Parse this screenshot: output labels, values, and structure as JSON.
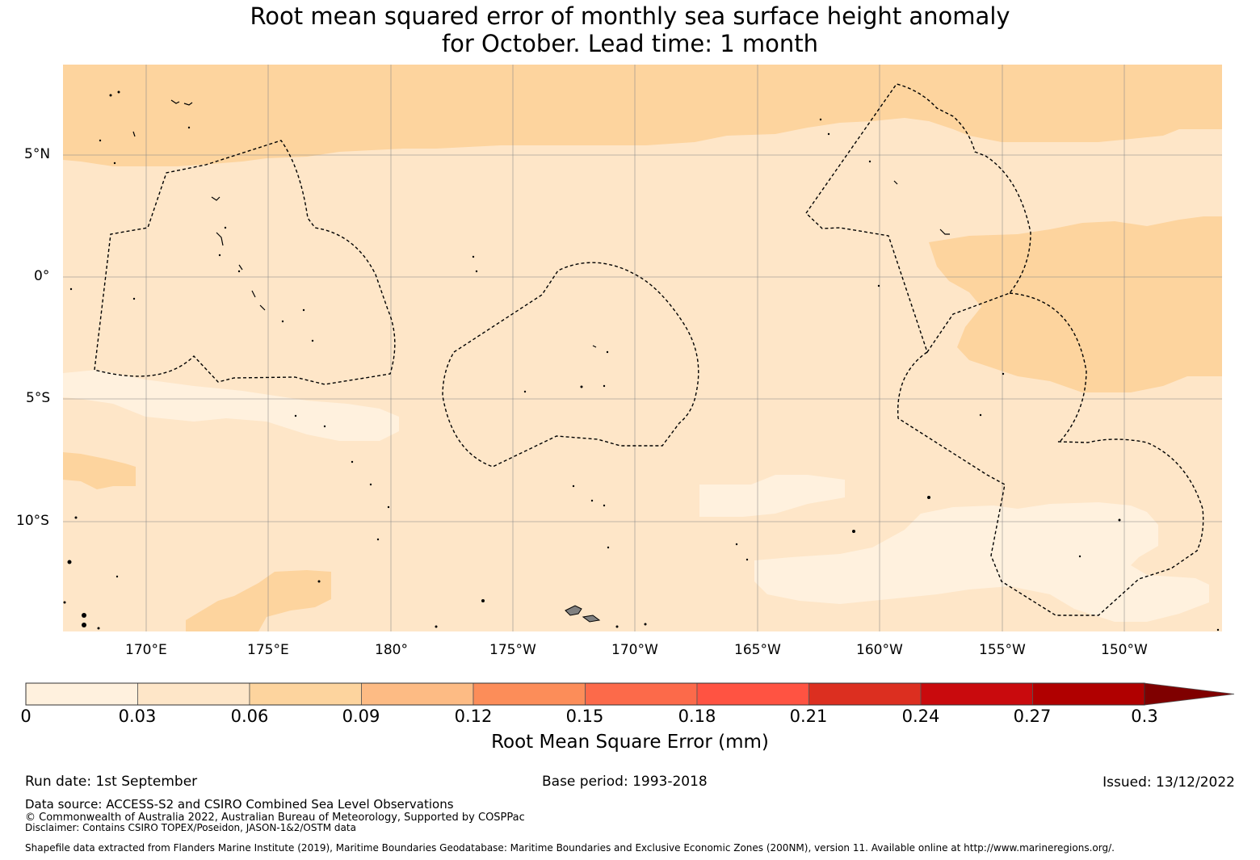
{
  "title": {
    "line1": "Root mean squared error of monthly sea surface height anomaly",
    "line2": "for October. Lead time: 1 month"
  },
  "map": {
    "lat_labels": [
      "5°N",
      "0°",
      "5°S",
      "10°S"
    ],
    "lon_labels": [
      "170°E",
      "175°E",
      "180°",
      "175°W",
      "170°W",
      "165°W",
      "160°W",
      "155°W",
      "150°W"
    ],
    "lat_range": [
      -14.5,
      8.7
    ],
    "lon_range": [
      166.6,
      213.9
    ]
  },
  "colorbar": {
    "label": "Root Mean Square Error (mm)",
    "ticks": [
      "0",
      "0.03",
      "0.06",
      "0.09",
      "0.12",
      "0.15",
      "0.18",
      "0.21",
      "0.24",
      "0.27",
      "0.3"
    ],
    "colors": [
      "#fff1de",
      "#fee6c8",
      "#fdd49e",
      "#fdbb84",
      "#fc8d59",
      "#fc6a4a",
      "#ff5342",
      "#dc2f20",
      "#c90a0d",
      "#b00000",
      "#7f0000"
    ],
    "extend": "max"
  },
  "footer": {
    "run_date": "Run date: 1st September",
    "base_period": "Base period: 1993-2018",
    "issued": "Issued: 13/12/2022",
    "data_source": "Data source: ACCESS-S2 and CSIRO Combined Sea Level Observations",
    "copyright": "© Commonwealth of Australia 2022, Australian Bureau of Meteorology, Supported by COSPPac",
    "disclaimer": "Disclaimer: Contains CSIRO TOPEX/Poseidon, JASON-1&2/OSTM data",
    "shapefile": "Shapefile data extracted from Flanders Marine Institute (2019), Maritime Boundaries Geodatabase: Maritime Boundaries and Exclusive Economic Zones (200NM), version 11. Available online at http://www.marineregions.org/."
  }
}
